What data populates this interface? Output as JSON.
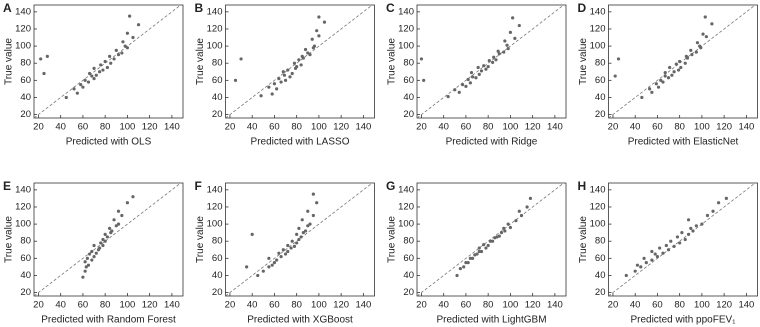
{
  "chart_data": [
    {
      "type": "scatter",
      "panel": "A",
      "x_label": "Predicted with OLS",
      "y_label": "True value",
      "color": "#666666",
      "identity_line": true,
      "xlim": [
        16,
        150
      ],
      "ylim": [
        16,
        148
      ],
      "xticks": [
        20,
        40,
        60,
        80,
        100,
        120,
        140
      ],
      "yticks": [
        20,
        40,
        60,
        80,
        100,
        120,
        140
      ],
      "x": [
        45,
        55,
        52,
        60,
        58,
        65,
        62,
        70,
        68,
        72,
        66,
        75,
        78,
        70,
        82,
        76,
        85,
        80,
        88,
        84,
        92,
        95,
        90,
        100,
        98,
        96,
        105,
        100,
        110,
        102,
        22,
        25,
        28
      ],
      "y": [
        40,
        45,
        50,
        52,
        55,
        58,
        60,
        62,
        65,
        66,
        68,
        70,
        72,
        74,
        75,
        78,
        80,
        82,
        85,
        88,
        90,
        92,
        95,
        98,
        100,
        105,
        110,
        115,
        125,
        135,
        85,
        68,
        88
      ]
    },
    {
      "type": "scatter",
      "panel": "B",
      "x_label": "Predicted with LASSO",
      "y_label": "True value",
      "color": "#666666",
      "identity_line": true,
      "xlim": [
        16,
        150
      ],
      "ylim": [
        16,
        148
      ],
      "xticks": [
        20,
        40,
        60,
        80,
        100,
        120,
        140
      ],
      "yticks": [
        20,
        40,
        60,
        80,
        100,
        120,
        140
      ],
      "x": [
        48,
        58,
        55,
        62,
        60,
        66,
        64,
        70,
        69,
        74,
        68,
        76,
        79,
        72,
        80,
        78,
        84,
        82,
        86,
        85,
        90,
        92,
        88,
        96,
        95,
        94,
        100,
        98,
        105,
        100,
        30,
        25
      ],
      "y": [
        42,
        44,
        52,
        50,
        56,
        58,
        62,
        60,
        66,
        64,
        70,
        68,
        74,
        72,
        76,
        80,
        78,
        84,
        86,
        88,
        92,
        90,
        96,
        100,
        98,
        108,
        112,
        118,
        128,
        134,
        85,
        60
      ]
    },
    {
      "type": "scatter",
      "panel": "C",
      "x_label": "Predicted with Ridge",
      "y_label": "True value",
      "color": "#666666",
      "identity_line": true,
      "xlim": [
        16,
        150
      ],
      "ylim": [
        16,
        148
      ],
      "xticks": [
        20,
        40,
        60,
        80,
        100,
        120,
        140
      ],
      "yticks": [
        20,
        40,
        60,
        80,
        100,
        120,
        140
      ],
      "x": [
        44,
        54,
        50,
        60,
        57,
        64,
        62,
        69,
        66,
        72,
        65,
        74,
        78,
        71,
        80,
        76,
        84,
        81,
        87,
        85,
        90,
        94,
        89,
        98,
        97,
        95,
        104,
        100,
        108,
        102,
        20,
        22
      ],
      "y": [
        41,
        46,
        49,
        53,
        55,
        57,
        61,
        63,
        64,
        67,
        69,
        71,
        73,
        75,
        76,
        77,
        81,
        83,
        84,
        87,
        91,
        93,
        94,
        97,
        101,
        106,
        109,
        116,
        124,
        133,
        85,
        60
      ]
    },
    {
      "type": "scatter",
      "panel": "D",
      "x_label": "Predicted with ElasticNet",
      "y_label": "True value",
      "color": "#666666",
      "identity_line": true,
      "xlim": [
        16,
        150
      ],
      "ylim": [
        16,
        148
      ],
      "xticks": [
        20,
        40,
        60,
        80,
        100,
        120,
        140
      ],
      "yticks": [
        20,
        40,
        60,
        80,
        100,
        120,
        140
      ],
      "x": [
        46,
        55,
        53,
        61,
        59,
        65,
        63,
        70,
        67,
        73,
        67,
        75,
        79,
        71,
        81,
        77,
        85,
        80,
        87,
        86,
        91,
        95,
        90,
        99,
        98,
        96,
        104,
        101,
        109,
        103,
        25,
        22
      ],
      "y": [
        40,
        46,
        50,
        52,
        56,
        58,
        60,
        63,
        65,
        66,
        69,
        70,
        72,
        75,
        75,
        79,
        80,
        82,
        86,
        88,
        90,
        93,
        95,
        98,
        100,
        104,
        111,
        114,
        126,
        134,
        85,
        65
      ]
    },
    {
      "type": "scatter",
      "panel": "E",
      "x_label": "Predicted with Random Forest",
      "y_label": "True value",
      "color": "#666666",
      "identity_line": true,
      "xlim": [
        16,
        150
      ],
      "ylim": [
        16,
        148
      ],
      "xticks": [
        20,
        40,
        60,
        80,
        100,
        120,
        140
      ],
      "yticks": [
        20,
        40,
        60,
        80,
        100,
        120,
        140
      ],
      "x": [
        60,
        62,
        63,
        65,
        62,
        68,
        64,
        70,
        66,
        72,
        68,
        74,
        75,
        70,
        78,
        76,
        80,
        78,
        82,
        80,
        85,
        86,
        84,
        90,
        92,
        88,
        95,
        92,
        100,
        105
      ],
      "y": [
        38,
        45,
        50,
        52,
        56,
        58,
        60,
        62,
        65,
        66,
        68,
        70,
        72,
        75,
        75,
        78,
        80,
        82,
        85,
        88,
        90,
        92,
        95,
        98,
        100,
        105,
        110,
        115,
        125,
        132
      ]
    },
    {
      "type": "scatter",
      "panel": "F",
      "x_label": "Predicted with XGBoost",
      "y_label": "True value",
      "color": "#666666",
      "identity_line": true,
      "xlim": [
        16,
        150
      ],
      "ylim": [
        16,
        148
      ],
      "xticks": [
        20,
        40,
        60,
        80,
        100,
        120,
        140
      ],
      "yticks": [
        20,
        40,
        60,
        80,
        100,
        120,
        140
      ],
      "x": [
        45,
        50,
        55,
        58,
        60,
        62,
        55,
        66,
        70,
        64,
        72,
        68,
        75,
        78,
        72,
        80,
        76,
        82,
        84,
        80,
        86,
        88,
        82,
        90,
        92,
        85,
        95,
        90,
        98,
        95,
        40,
        35
      ],
      "y": [
        40,
        45,
        50,
        52,
        55,
        58,
        60,
        62,
        65,
        66,
        68,
        70,
        72,
        74,
        75,
        78,
        80,
        82,
        85,
        88,
        90,
        92,
        95,
        98,
        100,
        105,
        110,
        115,
        125,
        135,
        88,
        50
      ]
    },
    {
      "type": "scatter",
      "panel": "G",
      "x_label": "Predicted with LightGBM",
      "y_label": "True value",
      "color": "#666666",
      "identity_line": true,
      "xlim": [
        16,
        150
      ],
      "ylim": [
        16,
        148
      ],
      "xticks": [
        20,
        40,
        60,
        80,
        100,
        120,
        140
      ],
      "yticks": [
        20,
        40,
        60,
        80,
        100,
        120,
        140
      ],
      "x": [
        52,
        55,
        58,
        60,
        62,
        64,
        66,
        68,
        70,
        72,
        74,
        72,
        78,
        76,
        80,
        82,
        84,
        86,
        88,
        90,
        92,
        95,
        94,
        100,
        98,
        105,
        110,
        108,
        115,
        118
      ],
      "y": [
        40,
        48,
        50,
        55,
        55,
        60,
        60,
        64,
        65,
        68,
        68,
        72,
        72,
        76,
        75,
        80,
        80,
        84,
        85,
        86,
        90,
        92,
        95,
        96,
        100,
        104,
        110,
        115,
        120,
        130
      ]
    },
    {
      "type": "scatter",
      "panel": "H",
      "x_label": "Predicted with ppoFEV₁",
      "y_label": "True value",
      "color": "#666666",
      "identity_line": true,
      "xlim": [
        16,
        150
      ],
      "ylim": [
        16,
        148
      ],
      "xticks": [
        20,
        40,
        60,
        80,
        100,
        120,
        140
      ],
      "yticks": [
        20,
        40,
        60,
        80,
        100,
        120,
        140
      ],
      "x": [
        32,
        40,
        45,
        42,
        50,
        55,
        48,
        60,
        58,
        65,
        55,
        70,
        62,
        75,
        68,
        80,
        72,
        85,
        78,
        88,
        82,
        92,
        90,
        95,
        100,
        88,
        105,
        110,
        115,
        122
      ],
      "y": [
        40,
        45,
        50,
        52,
        55,
        58,
        60,
        62,
        65,
        66,
        68,
        70,
        72,
        74,
        75,
        78,
        80,
        82,
        85,
        88,
        90,
        92,
        95,
        98,
        100,
        105,
        110,
        115,
        125,
        130
      ]
    }
  ]
}
